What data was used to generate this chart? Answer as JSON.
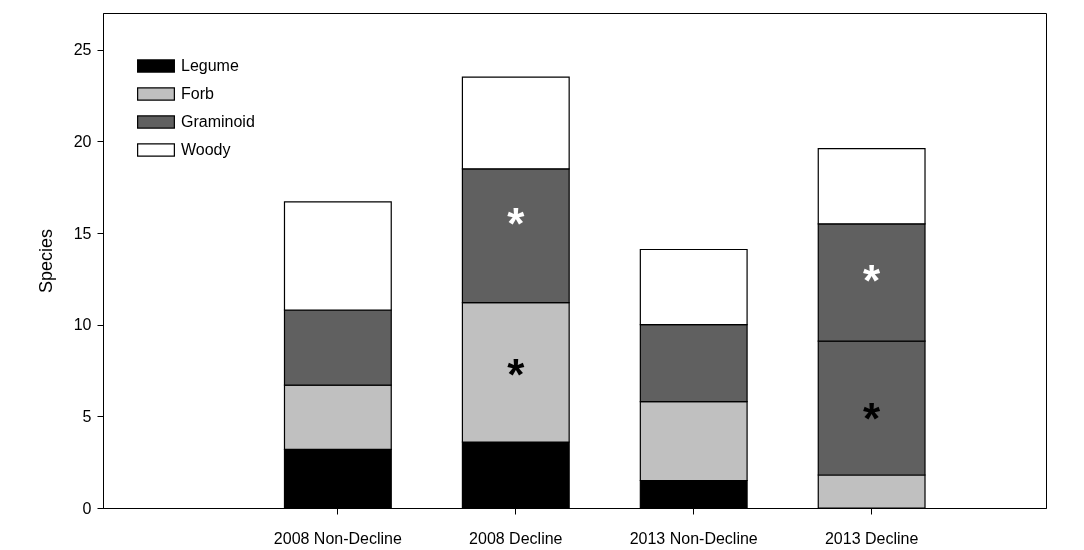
{
  "chart_data": {
    "type": "bar",
    "stacked": true,
    "ylabel": "Species",
    "categories": [
      "2008 Non-Decline",
      "2008 Decline",
      "2013 Non-Decline",
      "2013 Decline"
    ],
    "series": [
      {
        "name": "Legume",
        "color": "#000000",
        "values": [
          3.2,
          3.6,
          1.5,
          1.8
        ],
        "colors": [
          "#000000",
          "#000000",
          "#000000",
          "#c0c0c0"
        ]
      },
      {
        "name": "Forb",
        "color": "#c0c0c0",
        "values": [
          3.5,
          7.6,
          4.3,
          7.3
        ],
        "colors": [
          "#c0c0c0",
          "#c0c0c0",
          "#c0c0c0",
          "#606060"
        ]
      },
      {
        "name": "Graminoid",
        "color": "#606060",
        "values": [
          4.1,
          7.3,
          4.2,
          6.4
        ]
      },
      {
        "name": "Woody",
        "color": "#ffffff",
        "values": [
          5.9,
          5.0,
          4.1,
          4.1
        ]
      }
    ],
    "ylim": [
      0,
      27
    ],
    "yticks": [
      0,
      5,
      10,
      15,
      20,
      25
    ],
    "grid": false,
    "legend": "top left",
    "annotations": [
      "*",
      "*",
      "*",
      "*"
    ]
  }
}
